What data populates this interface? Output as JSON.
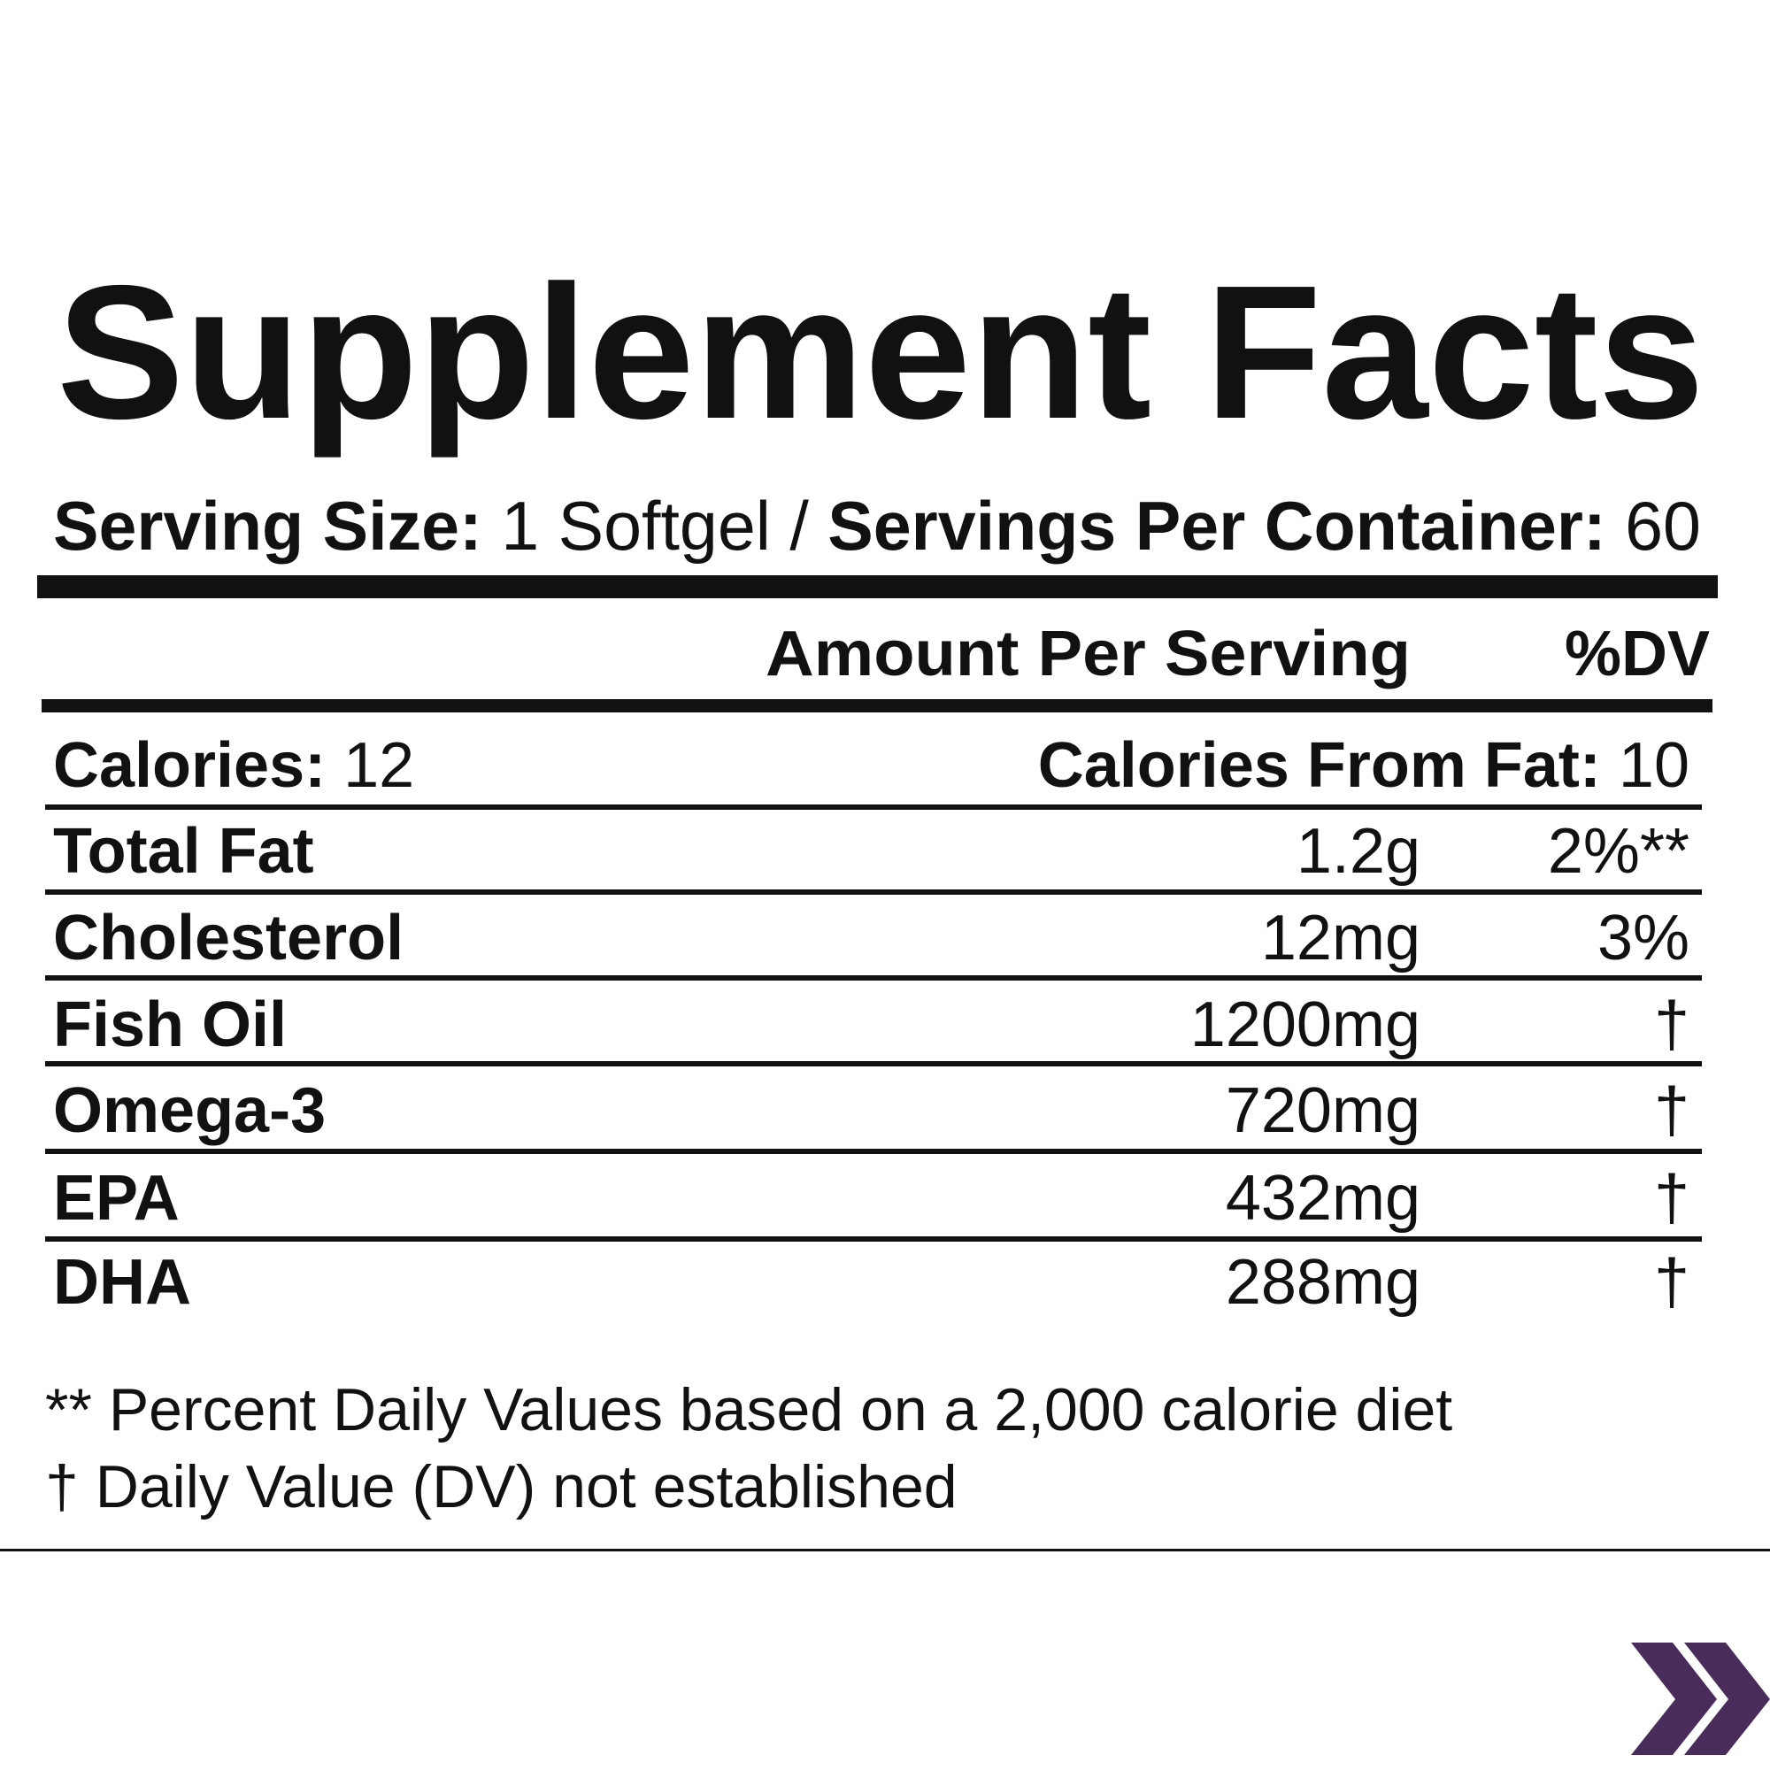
{
  "title": "Supplement Facts",
  "serving": {
    "size_label": "Serving Size:",
    "size": "1 Softgel",
    "separator": "/",
    "per_container_label": "Servings Per Container:",
    "per_container": "60"
  },
  "table": {
    "header": [
      "Amount Per Serving",
      "%DV"
    ],
    "calories": {
      "label": "Calories:",
      "value": "12",
      "fat_label": "Calories From Fat:",
      "fat_value": "10"
    },
    "rows": [
      [
        "Total Fat",
        "1.2g",
        "2%**"
      ],
      [
        "Cholesterol",
        "12mg",
        "3%"
      ],
      [
        "Fish Oil",
        "1200mg",
        "†"
      ],
      [
        "Omega-3",
        "720mg",
        "†"
      ],
      [
        "EPA",
        "432mg",
        "†"
      ],
      [
        "DHA",
        "288mg",
        "†"
      ]
    ]
  },
  "footnotes": [
    "** Percent Daily Values based on a 2,000 calorie diet",
    "† Daily Value (DV) not established"
  ]
}
